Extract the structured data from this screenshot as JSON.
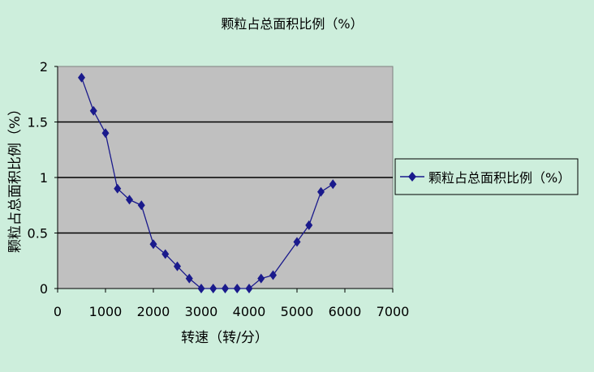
{
  "chart_data": {
    "type": "line",
    "title": "颗粒占总面积比例（%）",
    "xlabel": "转速（转/分）",
    "ylabel": "颗粒占总面积比例（%）",
    "xlim": [
      0,
      7000
    ],
    "ylim": [
      0,
      2
    ],
    "x_ticks": [
      "0",
      "1000",
      "2000",
      "3000",
      "4000",
      "5000",
      "6000",
      "7000"
    ],
    "y_ticks": [
      "0",
      "0.5",
      "1",
      "1.5",
      "2"
    ],
    "grid": "horizontal",
    "legend_position": "right",
    "plot_background": "#c0c0c0",
    "series": [
      {
        "name": "颗粒占总面积比例（%）",
        "color": "#1a1a8c",
        "marker": "diamond",
        "x": [
          500,
          750,
          1000,
          1250,
          1500,
          1750,
          2000,
          2250,
          2500,
          2750,
          3000,
          3250,
          3500,
          3750,
          4000,
          4250,
          4500,
          5000,
          5250,
          5500,
          5750
        ],
        "y": [
          1.9,
          1.6,
          1.4,
          0.9,
          0.8,
          0.75,
          0.4,
          0.31,
          0.2,
          0.09,
          0,
          0,
          0,
          0,
          0,
          0.09,
          0.12,
          0.42,
          0.57,
          0.87,
          0.94
        ]
      }
    ]
  }
}
